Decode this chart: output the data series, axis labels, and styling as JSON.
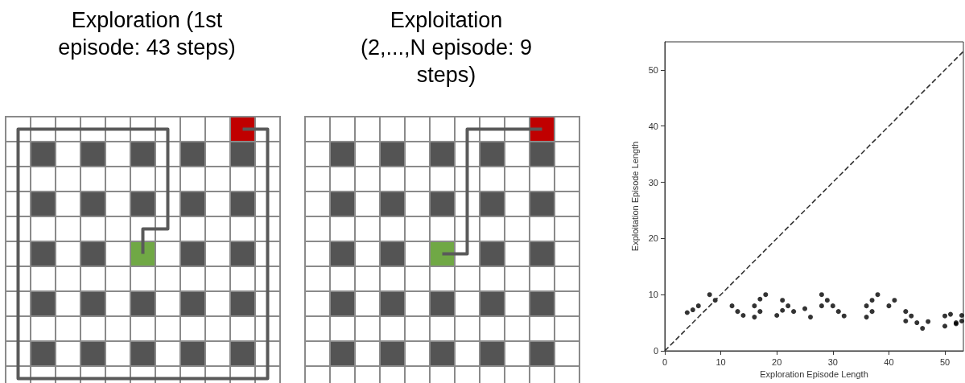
{
  "chart_data": [
    {
      "type": "other",
      "title": "Exploration (1st episode: 43 steps)"
    },
    {
      "type": "other",
      "title": "Exploitation (2,...,N episode: 9 steps)"
    },
    {
      "type": "scatter",
      "xlabel": "Exploration Episode Length",
      "ylabel": "Exploitation Episode Length",
      "xlim": [
        0,
        53.3
      ],
      "ylim": [
        0,
        55
      ],
      "xticks": [
        0,
        10,
        20,
        30,
        40,
        50
      ],
      "yticks": [
        0,
        10,
        20,
        30,
        40,
        50
      ],
      "marker": "circle",
      "series": [
        {
          "color": "#000000",
          "x": [
            4,
            5,
            6,
            8,
            9,
            12,
            13,
            14,
            16,
            16,
            17,
            17,
            18,
            20,
            21,
            21,
            22,
            23,
            25,
            26,
            28,
            28,
            29,
            30,
            31,
            32,
            36,
            36,
            37,
            37,
            38,
            40,
            41,
            43,
            43,
            44,
            45,
            46,
            47,
            50,
            50,
            51,
            52,
            52,
            53,
            53
          ],
          "values": [
            6.8,
            7.3,
            8,
            10,
            9,
            8,
            7,
            6.3,
            8,
            6,
            9.2,
            7,
            10,
            6.3,
            9,
            7.2,
            8,
            7,
            7.5,
            6,
            10,
            8,
            9,
            8,
            7,
            6.2,
            8,
            6,
            9,
            7,
            10,
            8,
            9,
            7,
            5.3,
            6.2,
            5,
            4,
            5.2,
            6.2,
            4.4,
            6.5,
            5,
            4.8,
            6.3,
            5.3
          ]
        },
        {
          "type": "line",
          "color": "#333333",
          "line_style": "dashed",
          "marker": "none",
          "x": [
            0,
            53.3
          ],
          "values": [
            0,
            53.3
          ]
        }
      ]
    }
  ]
}
